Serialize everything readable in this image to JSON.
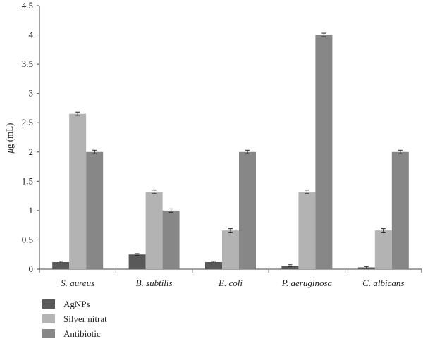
{
  "colors": {
    "AgNPs": "#595959",
    "Silver nitrat": "#b3b3b3",
    "Antibiotic": "#878787"
  },
  "chart_data": {
    "type": "bar",
    "ylabel_prefix": "μ",
    "ylabel_rest": "g (mL)",
    "ylim": [
      0,
      4.5
    ],
    "yticks": [
      "0",
      "0.5",
      "1",
      "1.5",
      "2",
      "2.5",
      "3",
      "3.5",
      "4",
      "4.5"
    ],
    "grid": false,
    "legend_position": "bottom-left",
    "categories": [
      "S. aureus",
      "B. subtilis",
      "E. coli",
      "P. aeruginosa",
      "C. albicans"
    ],
    "series": [
      {
        "name": "AgNPs",
        "values": [
          0.12,
          0.25,
          0.12,
          0.06,
          0.03
        ],
        "errors": [
          0.015,
          0.015,
          0.015,
          0.015,
          0.015
        ]
      },
      {
        "name": "Silver nitrat",
        "values": [
          2.65,
          1.32,
          0.66,
          1.32,
          0.66
        ],
        "errors": [
          0.03,
          0.03,
          0.03,
          0.03,
          0.03
        ]
      },
      {
        "name": "Antibiotic",
        "values": [
          2.0,
          1.0,
          2.0,
          4.0,
          2.0
        ],
        "errors": [
          0.03,
          0.03,
          0.03,
          0.03,
          0.03
        ]
      }
    ]
  }
}
